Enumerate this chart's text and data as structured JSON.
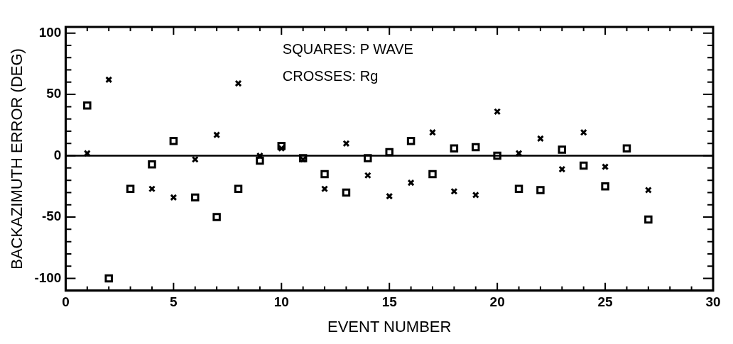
{
  "chart_data": {
    "type": "scatter",
    "xlabel": "EVENT NUMBER",
    "ylabel": "BACKAZIMUTH ERROR (DEG)",
    "x": [
      1,
      2,
      3,
      4,
      5,
      6,
      7,
      8,
      9,
      10,
      11,
      12,
      13,
      14,
      15,
      16,
      17,
      18,
      19,
      20,
      21,
      22,
      23,
      24,
      25,
      26,
      27
    ],
    "series": [
      {
        "color": "#000000",
        "marker": "square",
        "values": [
          41,
          -100,
          -27,
          -7,
          12,
          -34,
          -50,
          -27,
          -4,
          8,
          -2,
          -15,
          -30,
          -2,
          3,
          12,
          -15,
          6,
          7,
          0,
          -27,
          -28,
          5,
          -8,
          -25,
          6,
          -52
        ]
      },
      {
        "color": "#000000",
        "marker": "cross",
        "values": [
          2,
          62,
          null,
          -27,
          -34,
          -3,
          17,
          59,
          0,
          6,
          -3,
          -27,
          10,
          -16,
          -33,
          -22,
          19,
          -29,
          -32,
          36,
          2,
          14,
          -11,
          19,
          -9,
          null,
          -28
        ]
      }
    ],
    "xlim": [
      0,
      30
    ],
    "xticks": [
      0,
      {
        "value": 1,
        "label": null
      },
      {
        "value": 2,
        "label": null
      },
      {
        "value": 3,
        "label": null
      },
      {
        "value": 4,
        "label": null
      },
      5,
      {
        "value": 6,
        "label": null
      },
      {
        "value": 7,
        "label": null
      },
      {
        "value": 8,
        "label": null
      },
      {
        "value": 9,
        "label": null
      },
      10,
      {
        "value": 11,
        "label": null
      },
      {
        "value": 12,
        "label": null
      },
      {
        "value": 13,
        "label": null
      },
      {
        "value": 14,
        "label": null
      },
      15,
      {
        "value": 16,
        "label": null
      },
      {
        "value": 17,
        "label": null
      },
      {
        "value": 18,
        "label": null
      },
      {
        "value": 19,
        "label": null
      },
      20,
      {
        "value": 21,
        "label": null
      },
      {
        "value": 22,
        "label": null
      },
      {
        "value": 23,
        "label": null
      },
      {
        "value": 24,
        "label": null
      },
      25,
      {
        "value": 26,
        "label": null
      },
      {
        "value": 27,
        "label": null
      },
      {
        "value": 28,
        "label": null
      },
      {
        "value": 29,
        "label": null
      },
      30
    ],
    "ylim": [
      -110,
      105
    ],
    "yticks": [
      -100,
      {
        "value": -90,
        "label": null
      },
      {
        "value": -80,
        "label": null
      },
      {
        "value": -70,
        "label": null
      },
      {
        "value": -60,
        "label": null
      },
      -50,
      {
        "value": -40,
        "label": null
      },
      {
        "value": -30,
        "label": null
      },
      {
        "value": -20,
        "label": null
      },
      {
        "value": -10,
        "label": null
      },
      0,
      {
        "value": 10,
        "label": null
      },
      {
        "value": 20,
        "label": null
      },
      {
        "value": 30,
        "label": null
      },
      {
        "value": 40,
        "label": null
      },
      50,
      {
        "value": 60,
        "label": null
      },
      {
        "value": 70,
        "label": null
      },
      {
        "value": 80,
        "label": null
      },
      {
        "value": 90,
        "label": null
      },
      100
    ],
    "ref_lines": [
      {
        "axis": "y",
        "value": 0,
        "color": "#000000",
        "line_style": "solid"
      }
    ],
    "annotations": [
      "SQUARES: P WAVE",
      "CROSSES: Rg"
    ],
    "grid": false,
    "legend": false
  }
}
